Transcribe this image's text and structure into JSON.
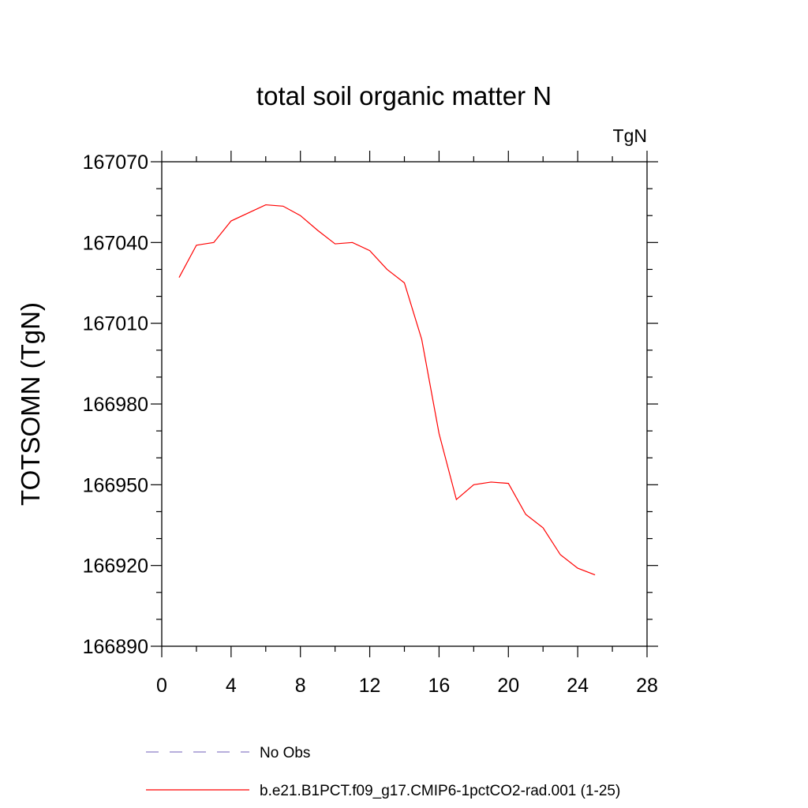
{
  "chart_data": {
    "type": "line",
    "title": "total soil organic matter N",
    "units_label": "TgN",
    "ylabel": "TOTSOMN  (TgN)",
    "xlabel": "",
    "xlim": [
      0,
      28
    ],
    "ylim": [
      166890,
      167070
    ],
    "x_ticks": [
      "0",
      "4",
      "8",
      "12",
      "16",
      "20",
      "24",
      "28"
    ],
    "y_ticks": [
      "166890",
      "166920",
      "166950",
      "166980",
      "167010",
      "167040",
      "167070"
    ],
    "grid": false,
    "legend_position": "bottom",
    "series": [
      {
        "name": "No Obs",
        "color": "#8c7fc8",
        "dash": "dashed",
        "x": [],
        "values": []
      },
      {
        "name": "b.e21.B1PCT.f09_g17.CMIP6-1pctCO2-rad.001 (1-25)",
        "color": "#ff0000",
        "dash": "solid",
        "x": [
          1,
          2,
          3,
          4,
          5,
          6,
          7,
          8,
          9,
          10,
          11,
          12,
          13,
          14,
          15,
          16,
          17,
          18,
          19,
          20,
          21,
          22,
          23,
          24,
          25
        ],
        "values": [
          167027,
          167039,
          167040,
          167048,
          167051,
          167054,
          167053.5,
          167050,
          167044.5,
          167039.5,
          167040,
          167037,
          167030,
          167025,
          167004,
          166969,
          166944.5,
          166950,
          166951,
          166950.5,
          166939,
          166934,
          166924,
          166919,
          166916.5
        ]
      }
    ]
  }
}
